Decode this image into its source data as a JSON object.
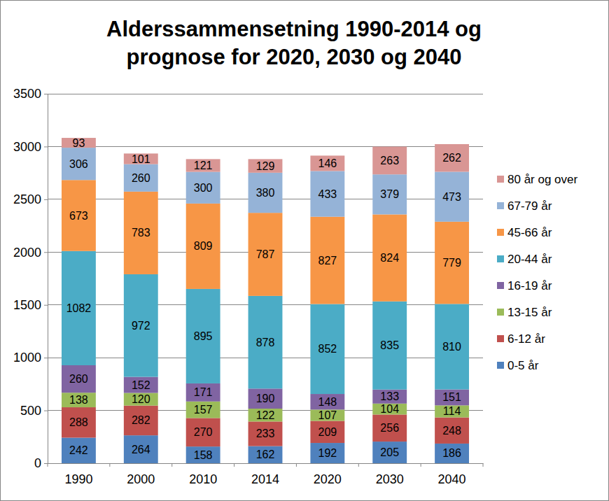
{
  "chart_data": {
    "type": "bar",
    "title": "Alderssammensetning 1990-2014 og prognose for 2020, 2030 og 2040",
    "categories": [
      "1990",
      "2000",
      "2010",
      "2014",
      "2020",
      "2030",
      "2040"
    ],
    "series": [
      {
        "name": "0-5 år",
        "color": "#4f81bd",
        "values": [
          242,
          264,
          158,
          162,
          192,
          205,
          186
        ]
      },
      {
        "name": "6-12 år",
        "color": "#c0504d",
        "values": [
          288,
          282,
          270,
          233,
          209,
          256,
          248
        ]
      },
      {
        "name": "13-15 år",
        "color": "#9bbb59",
        "values": [
          138,
          120,
          157,
          122,
          107,
          104,
          114
        ]
      },
      {
        "name": "16-19 år",
        "color": "#8064a2",
        "values": [
          260,
          152,
          171,
          190,
          148,
          133,
          151
        ]
      },
      {
        "name": "20-44 år",
        "color": "#4bacc6",
        "values": [
          1082,
          972,
          895,
          878,
          852,
          835,
          810
        ]
      },
      {
        "name": "45-66 år",
        "color": "#f79646",
        "values": [
          673,
          783,
          809,
          787,
          827,
          824,
          779
        ]
      },
      {
        "name": "67-79 år",
        "color": "#95b3d7",
        "values": [
          306,
          260,
          300,
          380,
          433,
          379,
          473
        ]
      },
      {
        "name": "80 år og over",
        "color": "#d99694",
        "values": [
          93,
          101,
          121,
          129,
          146,
          263,
          262
        ]
      }
    ],
    "ylim": [
      0,
      3500
    ],
    "yticks": [
      0,
      500,
      1000,
      1500,
      2000,
      2500,
      3000,
      3500
    ],
    "grid": true,
    "stacked": true,
    "data_labels": true,
    "legend": "right"
  }
}
